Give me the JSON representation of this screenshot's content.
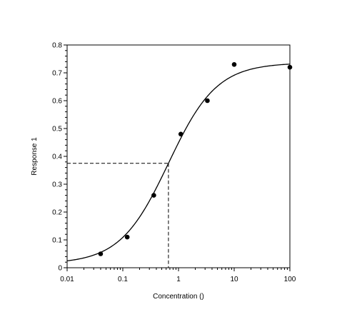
{
  "chart_data": {
    "type": "scatter",
    "xlabel": "Concentration ()",
    "ylabel": "Response 1",
    "x_scale": "log",
    "xlim": [
      0.01,
      100
    ],
    "ylim": [
      0,
      0.8
    ],
    "x_ticks": [
      0.01,
      0.1,
      1,
      10,
      100
    ],
    "x_tick_labels": [
      "0.01",
      "0.1",
      "1",
      "10",
      "100"
    ],
    "y_ticks": [
      0,
      0.1,
      0.2,
      0.3,
      0.4,
      0.5,
      0.6,
      0.7,
      0.8
    ],
    "y_tick_labels": [
      "0",
      "0.1",
      "0.2",
      "0.3",
      "0.4",
      "0.5",
      "0.6",
      "0.7",
      "0.8"
    ],
    "grid": false,
    "legend": "none",
    "series": [
      {
        "kind": "points",
        "x": [
          0.04,
          0.12,
          0.36,
          1.1,
          3.3,
          10,
          100
        ],
        "y": [
          0.05,
          0.11,
          0.26,
          0.48,
          0.6,
          0.73,
          0.72
        ]
      },
      {
        "kind": "fitted-curve",
        "model": "four-parameter logistic",
        "bottom": 0.014,
        "top": 0.736,
        "ec50": 0.66,
        "hill_slope": 1.0
      }
    ],
    "annotations": [
      {
        "kind": "ec50-dashed-guide",
        "x": 0.66,
        "y": 0.375
      }
    ]
  }
}
